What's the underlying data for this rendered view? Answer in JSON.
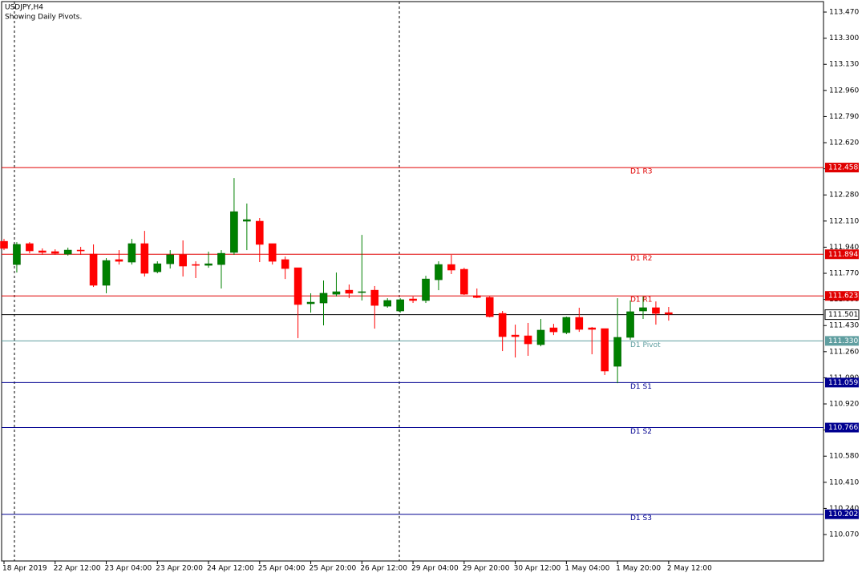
{
  "chart_data": {
    "type": "candlestick",
    "title": "USDJPY,H4",
    "subtitle": "Showing Daily Pivots.",
    "categories": [
      "18 Apr 2019",
      null,
      null,
      null,
      "22 Apr 12:00",
      null,
      null,
      null,
      "23 Apr 04:00",
      null,
      null,
      null,
      "23 Apr 20:00",
      null,
      null,
      null,
      "24 Apr 12:00",
      null,
      null,
      null,
      "25 Apr 04:00",
      null,
      null,
      null,
      "25 Apr 20:00",
      null,
      null,
      null,
      "26 Apr 12:00",
      null,
      null,
      null,
      "29 Apr 04:00",
      null,
      null,
      null,
      "29 Apr 20:00",
      null,
      null,
      null,
      "30 Apr 12:00",
      null,
      null,
      null,
      "1 May 04:00",
      null,
      null,
      null,
      "1 May 20:00",
      null,
      null,
      null,
      "2 May 12:00"
    ],
    "open": [
      111.978,
      111.827,
      111.963,
      111.916,
      111.911,
      111.895,
      111.921,
      111.895,
      111.692,
      111.859,
      111.843,
      111.963,
      111.78,
      111.832,
      111.89,
      111.827,
      111.822,
      111.827,
      111.906,
      112.109,
      112.109,
      111.963,
      111.859,
      111.806,
      111.572,
      111.577,
      111.634,
      111.66,
      111.645,
      111.66,
      111.556,
      111.525,
      111.603,
      111.593,
      111.728,
      111.827,
      111.796,
      111.624,
      111.613,
      111.509,
      111.368,
      111.363,
      111.306,
      111.415,
      111.384,
      111.483,
      111.415,
      111.41,
      111.165,
      111.353,
      111.525,
      111.546,
      111.514
    ],
    "high": [
      111.994,
      111.973,
      111.973,
      111.932,
      111.926,
      111.937,
      111.942,
      111.958,
      111.869,
      111.921,
      111.994,
      112.046,
      111.848,
      111.921,
      111.984,
      111.848,
      111.911,
      111.921,
      112.39,
      112.224,
      112.13,
      111.963,
      111.879,
      111.806,
      111.64,
      111.723,
      111.775,
      111.697,
      112.02,
      111.687,
      111.608,
      111.608,
      111.619,
      111.754,
      111.848,
      111.89,
      111.806,
      111.671,
      111.619,
      111.525,
      111.436,
      111.447,
      111.473,
      111.441,
      111.488,
      111.546,
      111.421,
      111.41,
      111.608,
      111.593,
      111.619,
      111.587,
      111.551
    ],
    "low": [
      111.921,
      111.775,
      111.9,
      111.89,
      111.89,
      111.885,
      111.89,
      111.681,
      111.64,
      111.827,
      111.827,
      111.749,
      111.77,
      111.801,
      111.749,
      111.739,
      111.806,
      111.671,
      111.89,
      111.921,
      111.843,
      111.827,
      111.733,
      111.348,
      111.514,
      111.431,
      111.619,
      111.608,
      111.593,
      111.41,
      111.546,
      111.514,
      111.577,
      111.577,
      111.66,
      111.765,
      111.629,
      111.608,
      111.483,
      111.264,
      111.222,
      111.233,
      111.295,
      111.368,
      111.374,
      111.389,
      111.243,
      111.108,
      111.055,
      111.337,
      111.473,
      111.436,
      111.462
    ],
    "close": [
      111.932,
      111.958,
      111.916,
      111.906,
      111.9,
      111.921,
      111.916,
      111.692,
      111.853,
      111.848,
      111.963,
      111.77,
      111.832,
      111.89,
      111.817,
      111.822,
      111.832,
      111.9,
      112.171,
      112.119,
      111.958,
      111.848,
      111.801,
      111.567,
      111.582,
      111.64,
      111.65,
      111.64,
      111.65,
      111.561,
      111.593,
      111.598,
      111.593,
      111.733,
      111.827,
      111.791,
      111.634,
      111.613,
      111.488,
      111.358,
      111.358,
      111.311,
      111.4,
      111.389,
      111.483,
      111.405,
      111.405,
      111.134,
      111.353,
      111.52,
      111.546,
      111.509,
      111.504
    ],
    "up_color": "#008000",
    "down_color": "#ff0000",
    "ylim": [
      109.898,
      113.538
    ],
    "yticks": [
      {
        "value": 113.47,
        "label": "113.470"
      },
      {
        "value": 113.3,
        "label": "113.300"
      },
      {
        "value": 113.13,
        "label": "113.130"
      },
      {
        "value": 112.96,
        "label": "112.960"
      },
      {
        "value": 112.79,
        "label": "112.790"
      },
      {
        "value": 112.62,
        "label": "112.620"
      },
      {
        "value": 112.45,
        "label": "112.450"
      },
      {
        "value": 112.28,
        "label": "112.280"
      },
      {
        "value": 112.11,
        "label": "112.110"
      },
      {
        "value": 111.94,
        "label": "111.940"
      },
      {
        "value": 111.77,
        "label": "111.770"
      },
      {
        "value": 111.6,
        "label": "111.600"
      },
      {
        "value": 111.43,
        "label": "111.430"
      },
      {
        "value": 111.26,
        "label": "111.260"
      },
      {
        "value": 111.09,
        "label": "111.090"
      },
      {
        "value": 110.92,
        "label": "110.920"
      },
      {
        "value": 110.75,
        "label": "110.750"
      },
      {
        "value": 110.58,
        "label": "110.580"
      },
      {
        "value": 110.41,
        "label": "110.410"
      },
      {
        "value": 110.24,
        "label": "110.240"
      },
      {
        "value": 110.07,
        "label": "110.070"
      }
    ],
    "grid": false,
    "pivots": {
      "names": [
        "D1 R3",
        "D1 R2",
        "D1 R1",
        "D1 Pivot",
        "D1 S1",
        "D1 S2",
        "D1 S3"
      ],
      "values": [
        112.458,
        111.894,
        111.623,
        111.33,
        111.059,
        110.766,
        110.202
      ],
      "value_labels": [
        "112.458",
        "111.894",
        "111.623",
        "111.330",
        "111.059",
        "110.766",
        "110.202"
      ],
      "colors": [
        "#e00000",
        "#e00000",
        "#e00000",
        "#5f9ea0",
        "#000090",
        "#000090",
        "#000090"
      ]
    },
    "last_price": 111.501
  }
}
